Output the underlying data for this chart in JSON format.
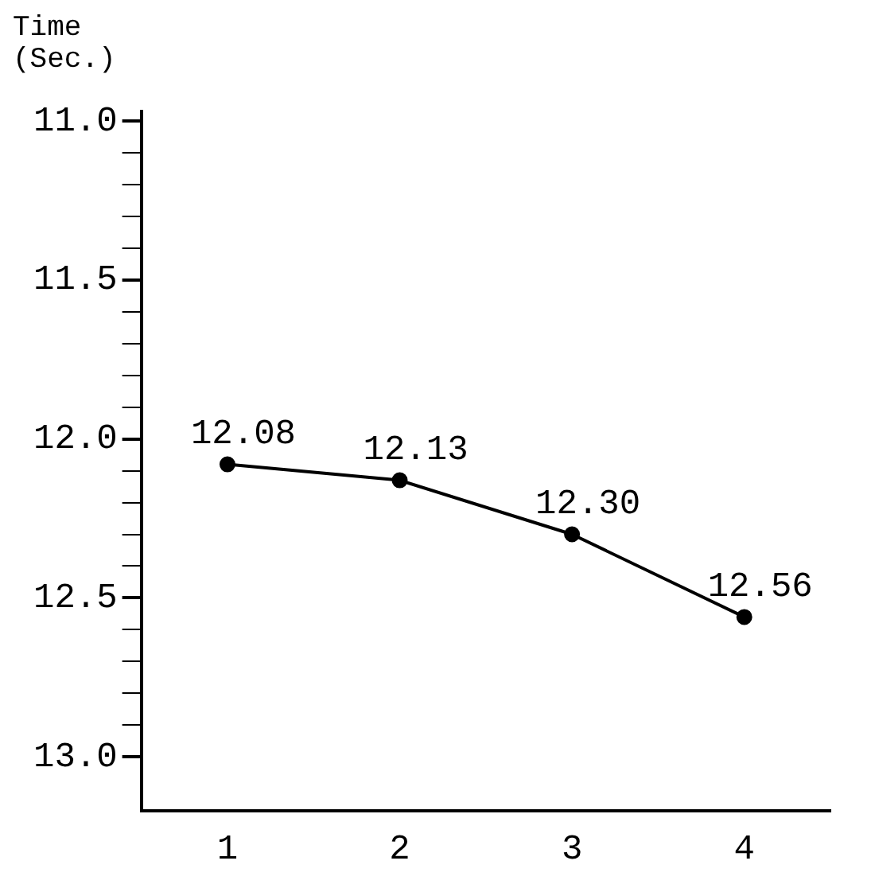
{
  "chart_data": {
    "type": "line",
    "ylabel": "Time (Sec.)",
    "categories": [
      "1",
      "2",
      "3",
      "4"
    ],
    "series": [
      {
        "color": "#000000",
        "values": [
          12.08,
          12.13,
          12.3,
          12.56
        ],
        "value_labels": [
          "12.08",
          "12.13",
          "12.30",
          "12.56"
        ]
      }
    ],
    "ylim": [
      13.17,
      10.97
    ],
    "yticks": [
      {
        "value": 11,
        "label": "11.0"
      },
      {
        "value": 11.1,
        "label": null
      },
      {
        "value": 11.2,
        "label": null
      },
      {
        "value": 11.3,
        "label": null
      },
      {
        "value": 11.4,
        "label": null
      },
      11.5,
      {
        "value": 11.6,
        "label": null
      },
      {
        "value": 11.7,
        "label": null
      },
      {
        "value": 11.8,
        "label": null
      },
      {
        "value": 11.9,
        "label": null
      },
      {
        "value": 12,
        "label": "12.0"
      },
      {
        "value": 12.1,
        "label": null
      },
      {
        "value": 12.2,
        "label": null
      },
      {
        "value": 12.3,
        "label": null
      },
      {
        "value": 12.4,
        "label": null
      },
      12.5,
      {
        "value": 12.6,
        "label": null
      },
      {
        "value": 12.7,
        "label": null
      },
      {
        "value": 12.8,
        "label": null
      },
      {
        "value": 12.9,
        "label": null
      },
      {
        "value": 13,
        "label": "13.0"
      }
    ],
    "grid": false,
    "legend": false,
    "marker": "circle",
    "line_style": "solid"
  }
}
